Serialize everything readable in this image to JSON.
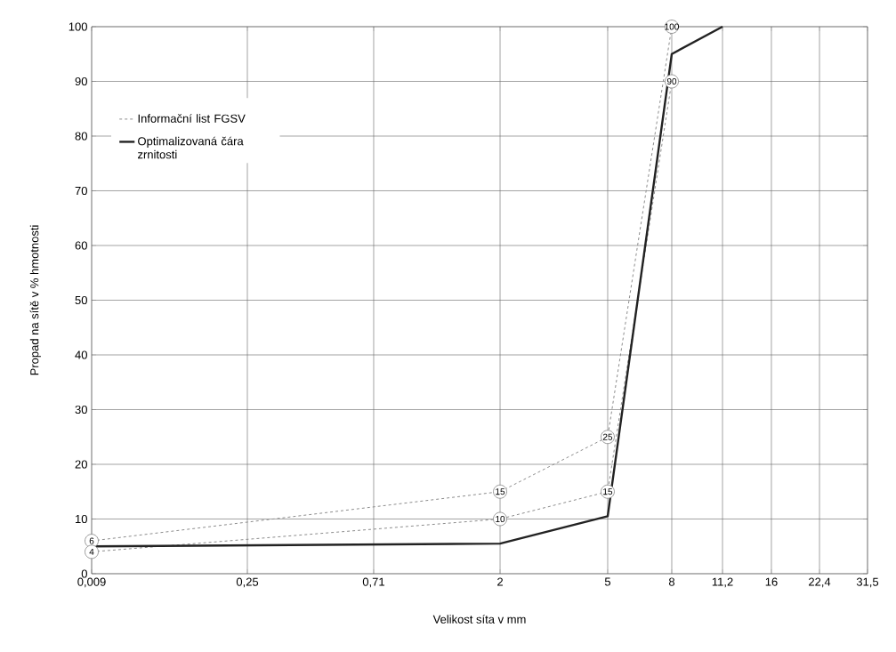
{
  "chart_data": {
    "type": "line",
    "xlabel": "Velikost síta v mm",
    "ylabel": "Propad na sítě v % hmotnosti",
    "categories": [
      "0,009",
      "0,25",
      "0,71",
      "2",
      "5",
      "8",
      "11,2",
      "16",
      "22,4",
      "31,5"
    ],
    "ylim": [
      0,
      100
    ],
    "yticks": [
      0,
      10,
      20,
      30,
      40,
      50,
      60,
      70,
      80,
      90,
      100
    ],
    "grid": true,
    "legend": "top left",
    "series": [
      {
        "name": "Informační list FGSV",
        "color": "#8c8c8c",
        "line_style": "dashed",
        "marker": "circle",
        "x": [
          "0,009",
          "2",
          "5",
          "8"
        ],
        "values": [
          6,
          15,
          25,
          100
        ]
      },
      {
        "color": "#8c8c8c",
        "line_style": "dashed",
        "marker": "circle",
        "x": [
          "0,009",
          "2",
          "5",
          "8"
        ],
        "values": [
          4,
          10,
          15,
          90
        ]
      },
      {
        "name": "Optimalizovaná čára zrnitosti",
        "color": "#222222",
        "line_style": "solid",
        "marker": "none",
        "x": [
          "0,009",
          "2",
          "5",
          "8",
          "11,2"
        ],
        "values": [
          5,
          5.5,
          10.5,
          95,
          100
        ]
      }
    ],
    "annotations": [
      {
        "text": "6",
        "x": "0,009",
        "y": 6
      },
      {
        "text": "4",
        "x": "0,009",
        "y": 4
      },
      {
        "text": "15",
        "x": "2",
        "y": 15
      },
      {
        "text": "10",
        "x": "2",
        "y": 10
      },
      {
        "text": "25",
        "x": "5",
        "y": 25
      },
      {
        "text": "15",
        "x": "5",
        "y": 15
      },
      {
        "text": "90",
        "x": "8",
        "y": 90
      },
      {
        "text": "100",
        "x": "8",
        "y": 100
      }
    ]
  }
}
